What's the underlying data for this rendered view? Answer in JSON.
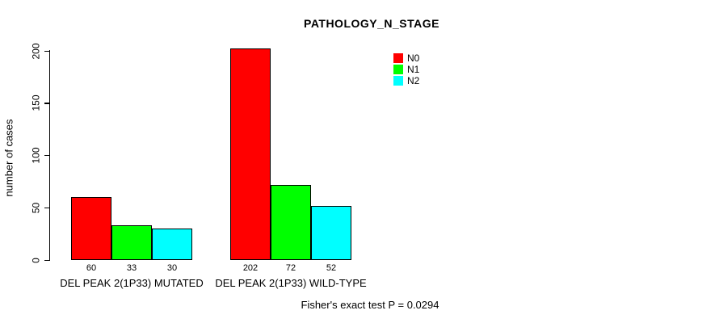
{
  "chart_data": {
    "type": "bar",
    "title": "PATHOLOGY_N_STAGE",
    "ylabel": "number of cases",
    "xlabel": "",
    "categories": [
      "DEL PEAK 2(1P33) MUTATED",
      "DEL PEAK 2(1P33) WILD-TYPE"
    ],
    "series": [
      {
        "name": "N0",
        "color": "#ff0000",
        "values": [
          60,
          202
        ]
      },
      {
        "name": "N1",
        "color": "#00ff00",
        "values": [
          33,
          72
        ]
      },
      {
        "name": "N2",
        "color": "#00ffff",
        "values": [
          30,
          52
        ]
      }
    ],
    "ylim": [
      0,
      200
    ],
    "yticks": [
      0,
      50,
      100,
      150,
      200
    ],
    "bar_border_color": "#000000",
    "text_color": "#000000",
    "background_color": "#ffffff",
    "legend_position": "top-right-inside",
    "grid": false,
    "annotation": "Fisher's exact test P = 0.0294"
  }
}
